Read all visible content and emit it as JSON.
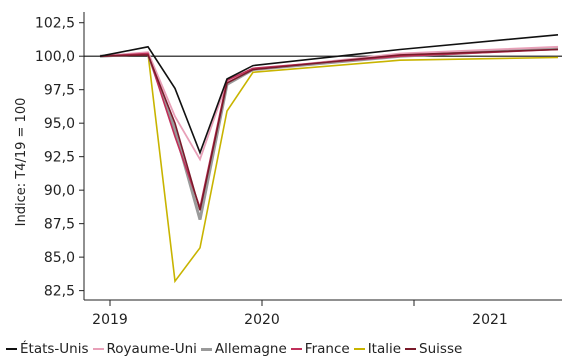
{
  "chart_data": {
    "type": "line",
    "ylabel": "Indice: T4/19 = 100",
    "xlabel": "",
    "ylim": [
      81.8,
      103.3
    ],
    "yticks": [
      "82,5",
      "85,0",
      "87,5",
      "90,0",
      "92,5",
      "95,0",
      "97,5",
      "100,0",
      "102,5"
    ],
    "xticks": [
      "2019",
      "2020",
      "2021"
    ],
    "x": [
      "2019-Q4",
      "2020-Q1",
      "2020-Q2",
      "2020-Q3",
      "2020-Q4",
      "2021-Q1",
      "2021-Q2",
      "2021-Q3"
    ],
    "reference_line": 100,
    "grid": false,
    "legend_position": "bottom",
    "series": [
      {
        "name": "États-Unis",
        "color": "#111111",
        "values": [
          100.0,
          100.7,
          97.6,
          92.8,
          98.3,
          99.3,
          100.5,
          101.6
        ]
      },
      {
        "name": "Royaume-Uni",
        "color": "#e8a0b8",
        "values": [
          100.0,
          100.3,
          95.5,
          92.3,
          98.1,
          99.0,
          100.2,
          100.7
        ]
      },
      {
        "name": "Allemagne",
        "color": "#9a9a9a",
        "values": [
          100.0,
          100.2,
          94.5,
          87.8,
          97.9,
          99.0,
          100.0,
          100.6
        ]
      },
      {
        "name": "France",
        "color": "#c0305a",
        "values": [
          100.0,
          100.2,
          94.0,
          88.7,
          98.2,
          99.1,
          100.0,
          100.5
        ]
      },
      {
        "name": "Italie",
        "color": "#c8b400",
        "values": [
          100.0,
          100.2,
          83.2,
          85.7,
          95.9,
          98.8,
          99.7,
          99.9
        ]
      },
      {
        "name": "Suisse",
        "color": "#7a1a2a",
        "values": [
          100.0,
          100.1,
          95.0,
          88.5,
          98.0,
          99.0,
          100.1,
          100.5
        ]
      }
    ]
  }
}
